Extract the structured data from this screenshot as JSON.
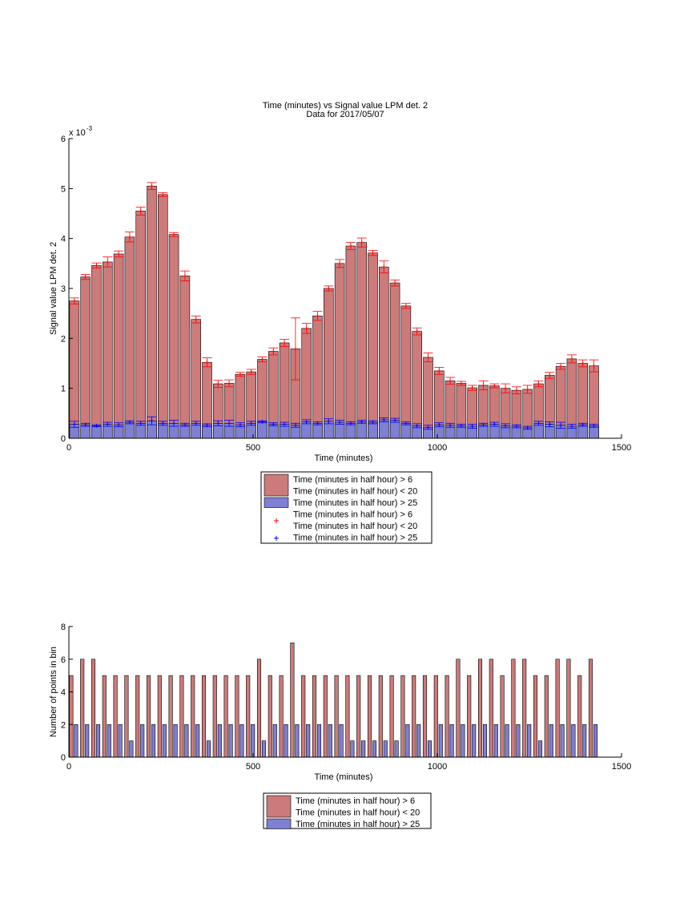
{
  "chart_data": [
    {
      "type": "bar",
      "title": [
        "Time (minutes) vs Signal value LPM det. 2",
        "Data for 2017/05/07"
      ],
      "xlabel": "Time (minutes)",
      "ylabel": "Signal value LPM det. 2",
      "y_exponent_label": "x 10",
      "y_exponent": "-3",
      "xlim": [
        0,
        1500
      ],
      "ylim": [
        0,
        6
      ],
      "xticks": [
        "0",
        "500",
        "1000",
        "1500"
      ],
      "yticks": [
        "0",
        "1",
        "2",
        "3",
        "4",
        "5",
        "6"
      ],
      "bar_width_minutes": 26,
      "x": [
        15,
        45,
        75,
        105,
        135,
        165,
        195,
        225,
        255,
        285,
        315,
        345,
        375,
        405,
        435,
        465,
        495,
        525,
        555,
        585,
        615,
        645,
        675,
        705,
        735,
        765,
        795,
        825,
        855,
        885,
        915,
        945,
        975,
        1005,
        1035,
        1065,
        1095,
        1125,
        1155,
        1185,
        1215,
        1245,
        1275,
        1305,
        1335,
        1365,
        1395,
        1425
      ],
      "series": [
        {
          "name": "Time (minutes in half hour) > 6\nTime (minutes in half hour) < 20",
          "values": [
            2.75,
            3.23,
            3.46,
            3.53,
            3.69,
            4.03,
            4.55,
            5.05,
            4.88,
            4.08,
            3.25,
            2.38,
            1.52,
            1.09,
            1.1,
            1.28,
            1.33,
            1.58,
            1.74,
            1.91,
            1.79,
            2.2,
            2.45,
            3.0,
            3.5,
            3.85,
            3.92,
            3.71,
            3.43,
            3.11,
            2.65,
            2.14,
            1.62,
            1.35,
            1.15,
            1.1,
            1.01,
            1.06,
            1.05,
            1.0,
            0.96,
            0.98,
            1.09,
            1.26,
            1.44,
            1.59,
            1.5,
            1.45
          ],
          "errors": [
            0.06,
            0.05,
            0.05,
            0.1,
            0.06,
            0.1,
            0.08,
            0.07,
            0.04,
            0.04,
            0.1,
            0.07,
            0.09,
            0.07,
            0.07,
            0.04,
            0.05,
            0.05,
            0.07,
            0.07,
            0.62,
            0.1,
            0.09,
            0.05,
            0.08,
            0.07,
            0.09,
            0.05,
            0.12,
            0.06,
            0.05,
            0.07,
            0.09,
            0.07,
            0.07,
            0.04,
            0.05,
            0.09,
            0.04,
            0.09,
            0.07,
            0.08,
            0.06,
            0.06,
            0.06,
            0.08,
            0.07,
            0.12
          ]
        },
        {
          "name": "Time (minutes in half hour) > 25",
          "values": [
            0.28,
            0.27,
            0.25,
            0.28,
            0.27,
            0.32,
            0.3,
            0.35,
            0.3,
            0.3,
            0.27,
            0.3,
            0.26,
            0.3,
            0.3,
            0.27,
            0.3,
            0.33,
            0.28,
            0.28,
            0.26,
            0.33,
            0.3,
            0.34,
            0.32,
            0.3,
            0.33,
            0.32,
            0.37,
            0.36,
            0.3,
            0.25,
            0.22,
            0.27,
            0.26,
            0.25,
            0.24,
            0.27,
            0.28,
            0.25,
            0.24,
            0.21,
            0.3,
            0.28,
            0.26,
            0.24,
            0.27,
            0.25
          ],
          "errors": [
            0.06,
            0.03,
            0.02,
            0.04,
            0.04,
            0.03,
            0.04,
            0.08,
            0.04,
            0.06,
            0.03,
            0.04,
            0.03,
            0.05,
            0.06,
            0.04,
            0.04,
            0.02,
            0.03,
            0.04,
            0.04,
            0.04,
            0.03,
            0.05,
            0.04,
            0.03,
            0.03,
            0.03,
            0.04,
            0.04,
            0.03,
            0.04,
            0.04,
            0.04,
            0.04,
            0.03,
            0.04,
            0.03,
            0.04,
            0.04,
            0.03,
            0.03,
            0.04,
            0.05,
            0.06,
            0.04,
            0.03,
            0.03
          ]
        }
      ],
      "legend": {
        "placement": "below",
        "entries": [
          {
            "kind": "patch",
            "color": "#cc7a7a",
            "lines": [
              "Time (minutes in half hour) > 6",
              "Time (minutes in half hour) < 20"
            ]
          },
          {
            "kind": "patch",
            "color": "#7f7fd3",
            "lines": [
              "Time (minutes in half hour) > 25"
            ]
          },
          {
            "kind": "marker",
            "color": "#ff0000",
            "lines": [
              "Time (minutes in half hour) > 6",
              "Time (minutes in half hour) < 20"
            ]
          },
          {
            "kind": "marker",
            "color": "#0000ff",
            "lines": [
              "Time (minutes in half hour) > 25"
            ]
          }
        ]
      }
    },
    {
      "type": "bar",
      "xlabel": "Time (minutes)",
      "ylabel": "Number of points in bin",
      "xlim": [
        0,
        1500
      ],
      "ylim": [
        0,
        8
      ],
      "xticks": [
        "0",
        "500",
        "1000",
        "1500"
      ],
      "yticks": [
        "0",
        "2",
        "4",
        "6",
        "8"
      ],
      "x": [
        15,
        45,
        75,
        105,
        135,
        165,
        195,
        225,
        255,
        285,
        315,
        345,
        375,
        405,
        435,
        465,
        495,
        525,
        555,
        585,
        615,
        645,
        675,
        705,
        735,
        765,
        795,
        825,
        855,
        885,
        915,
        945,
        975,
        1005,
        1035,
        1065,
        1095,
        1125,
        1155,
        1185,
        1215,
        1245,
        1275,
        1305,
        1335,
        1365,
        1395,
        1425
      ],
      "series": [
        {
          "name": "Time (minutes in half hour) > 6\nTime (minutes in half hour) < 20",
          "values": [
            5,
            6,
            6,
            5,
            5,
            5,
            5,
            5,
            5,
            5,
            5,
            5,
            5,
            5,
            5,
            5,
            5,
            6,
            5,
            5,
            7,
            5,
            5,
            5,
            5,
            5,
            5,
            5,
            5,
            5,
            5,
            5,
            5,
            5,
            5,
            6,
            5,
            6,
            6,
            5,
            6,
            6,
            5,
            5,
            6,
            6,
            5,
            6
          ]
        },
        {
          "name": "Time (minutes in half hour) > 25",
          "values": [
            2,
            2,
            2,
            2,
            2,
            1,
            2,
            2,
            2,
            2,
            2,
            2,
            1,
            2,
            2,
            2,
            2,
            1,
            2,
            2,
            2,
            2,
            2,
            2,
            2,
            1,
            1,
            1,
            1,
            1,
            2,
            2,
            1,
            2,
            2,
            2,
            2,
            2,
            2,
            2,
            2,
            2,
            1,
            2,
            2,
            2,
            2,
            2
          ]
        }
      ],
      "legend": {
        "placement": "below",
        "entries": [
          {
            "kind": "patch",
            "color": "#cc7a7a",
            "lines": [
              "Time (minutes in half hour) > 6",
              "Time (minutes in half hour) < 20"
            ]
          },
          {
            "kind": "patch",
            "color": "#7f7fd3",
            "lines": [
              "Time (minutes in half hour) > 25"
            ]
          }
        ]
      }
    }
  ]
}
